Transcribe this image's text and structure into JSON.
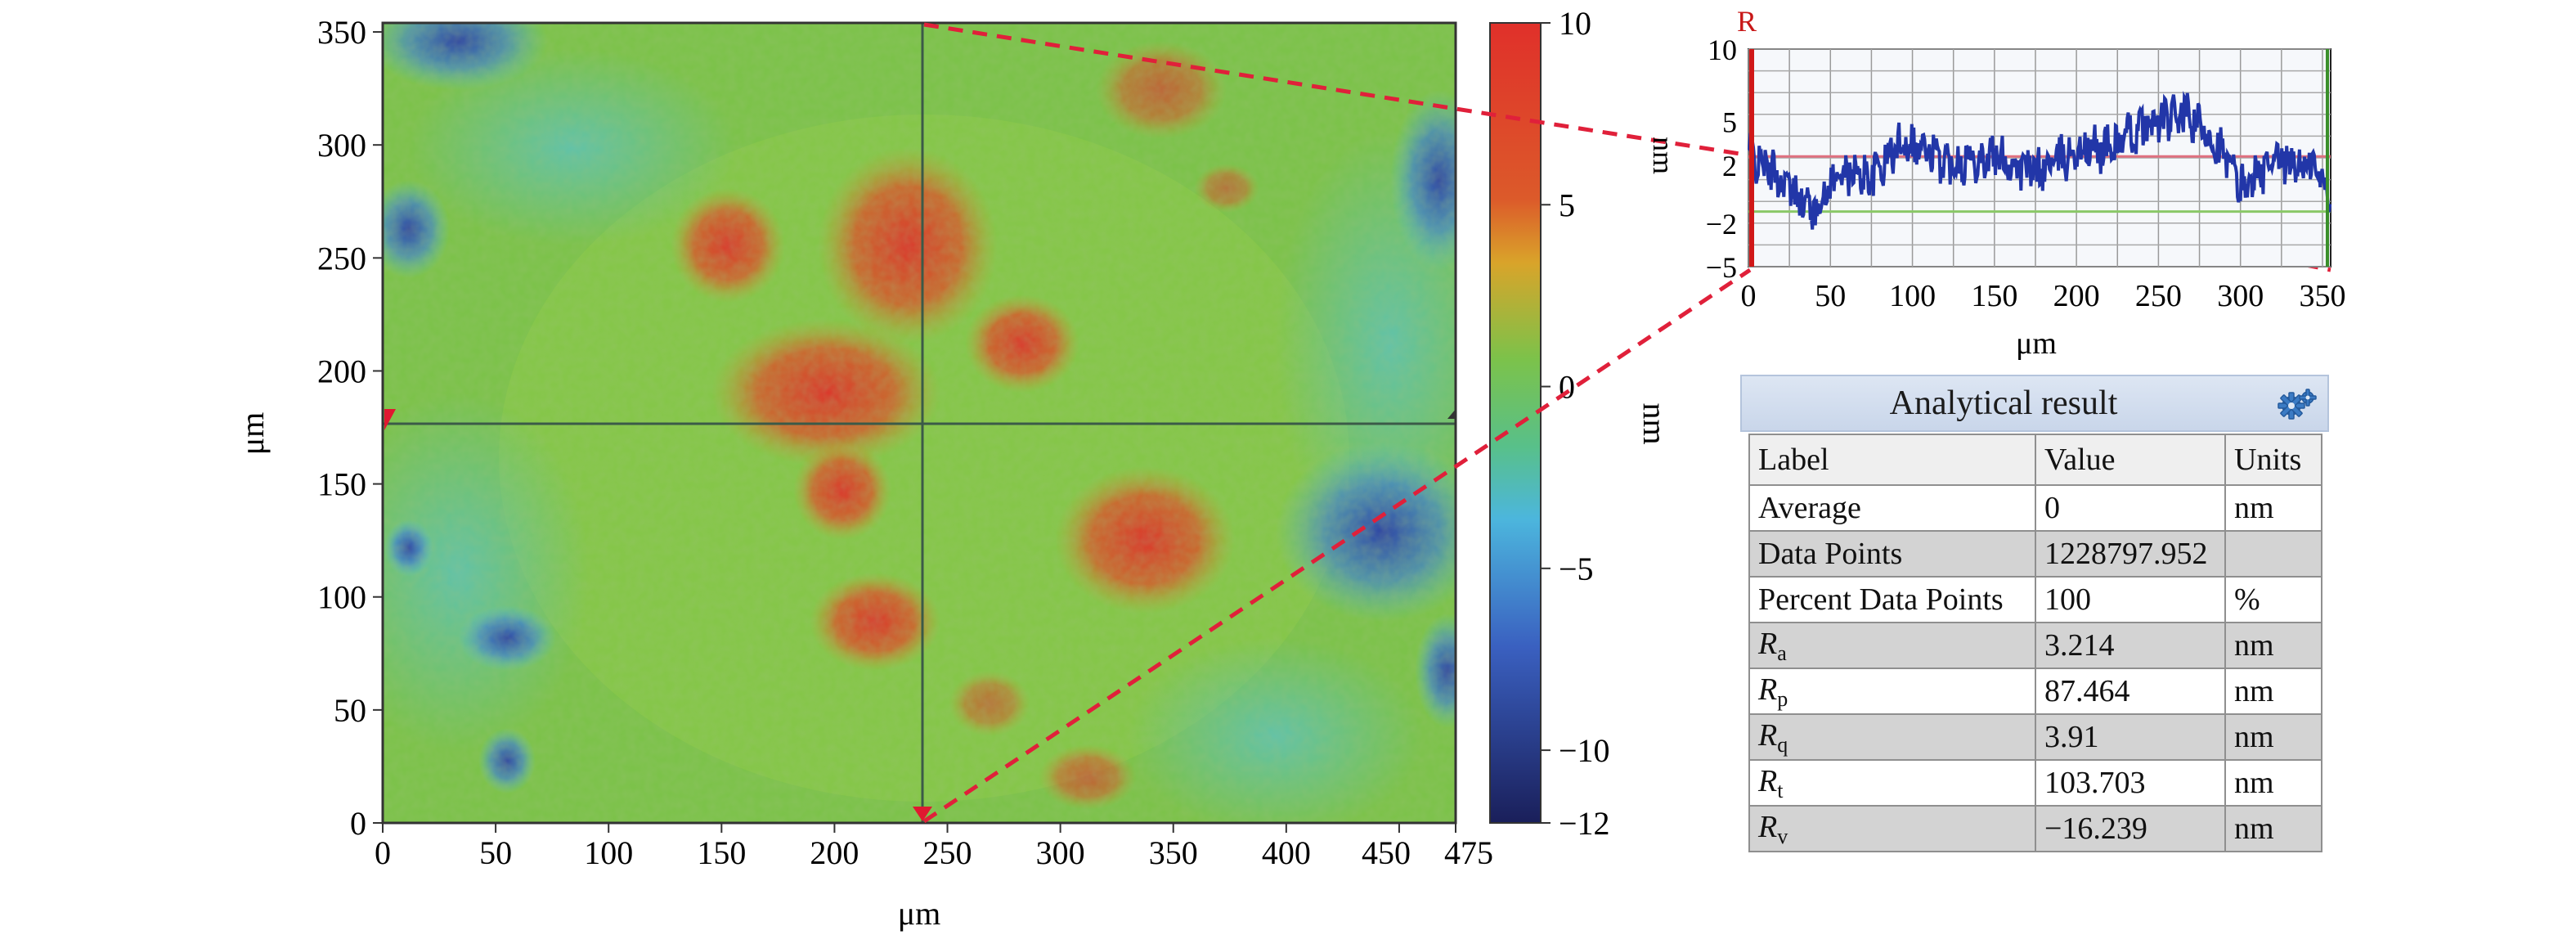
{
  "colors": {
    "map_low": "#1a2b7a",
    "map_mid": "#7cc24a",
    "map_high": "#e0302a",
    "profile_line": "#2236a8",
    "profile_marker": "#d01818",
    "dashed_connector": "#e0203a",
    "table_header": "#d6e0f0",
    "table_row_shade": "#d3d3d3"
  },
  "surface_map": {
    "x_axis": {
      "label": "μm",
      "ticks": [
        "0",
        "50",
        "100",
        "150",
        "200",
        "250",
        "300",
        "350",
        "400",
        "450",
        "475"
      ]
    },
    "y_axis": {
      "label": "μm",
      "ticks": [
        "0",
        "50",
        "100",
        "150",
        "200",
        "250",
        "300",
        "350"
      ]
    },
    "crosshair": {
      "x_um": 240,
      "y_um": 178
    }
  },
  "colorbar": {
    "unit_label": "nm",
    "ticks": [
      "10",
      "5",
      "0",
      "−5",
      "−10",
      "−12"
    ]
  },
  "profile": {
    "cursor_label": "R",
    "y_unit": "nm",
    "x_label": "μm",
    "y_ticks": [
      "10",
      "5",
      "2",
      "−2",
      "−5"
    ],
    "x_ticks": [
      "0",
      "50",
      "100",
      "150",
      "200",
      "250",
      "300",
      "350"
    ],
    "icons": [
      "cursor-marker-icon"
    ]
  },
  "analysis_table": {
    "title": "Analytical result",
    "settings_icon": "gear-icon",
    "headers": [
      "Label",
      "Value",
      "Units"
    ],
    "rows": [
      {
        "label": "Average",
        "value": "0",
        "units": "nm"
      },
      {
        "label": "Data Points",
        "value": "1228797.952",
        "units": ""
      },
      {
        "label": "Percent Data Points",
        "value": "100",
        "units": "%"
      },
      {
        "label_main": "R",
        "label_sub": "a",
        "value": "3.214",
        "units": "nm"
      },
      {
        "label_main": "R",
        "label_sub": "p",
        "value": "87.464",
        "units": "nm"
      },
      {
        "label_main": "R",
        "label_sub": "q",
        "value": "3.91",
        "units": "nm"
      },
      {
        "label_main": "R",
        "label_sub": "t",
        "value": "103.703",
        "units": "nm"
      },
      {
        "label_main": "R",
        "label_sub": "v",
        "value": "−16.239",
        "units": "nm"
      }
    ]
  }
}
